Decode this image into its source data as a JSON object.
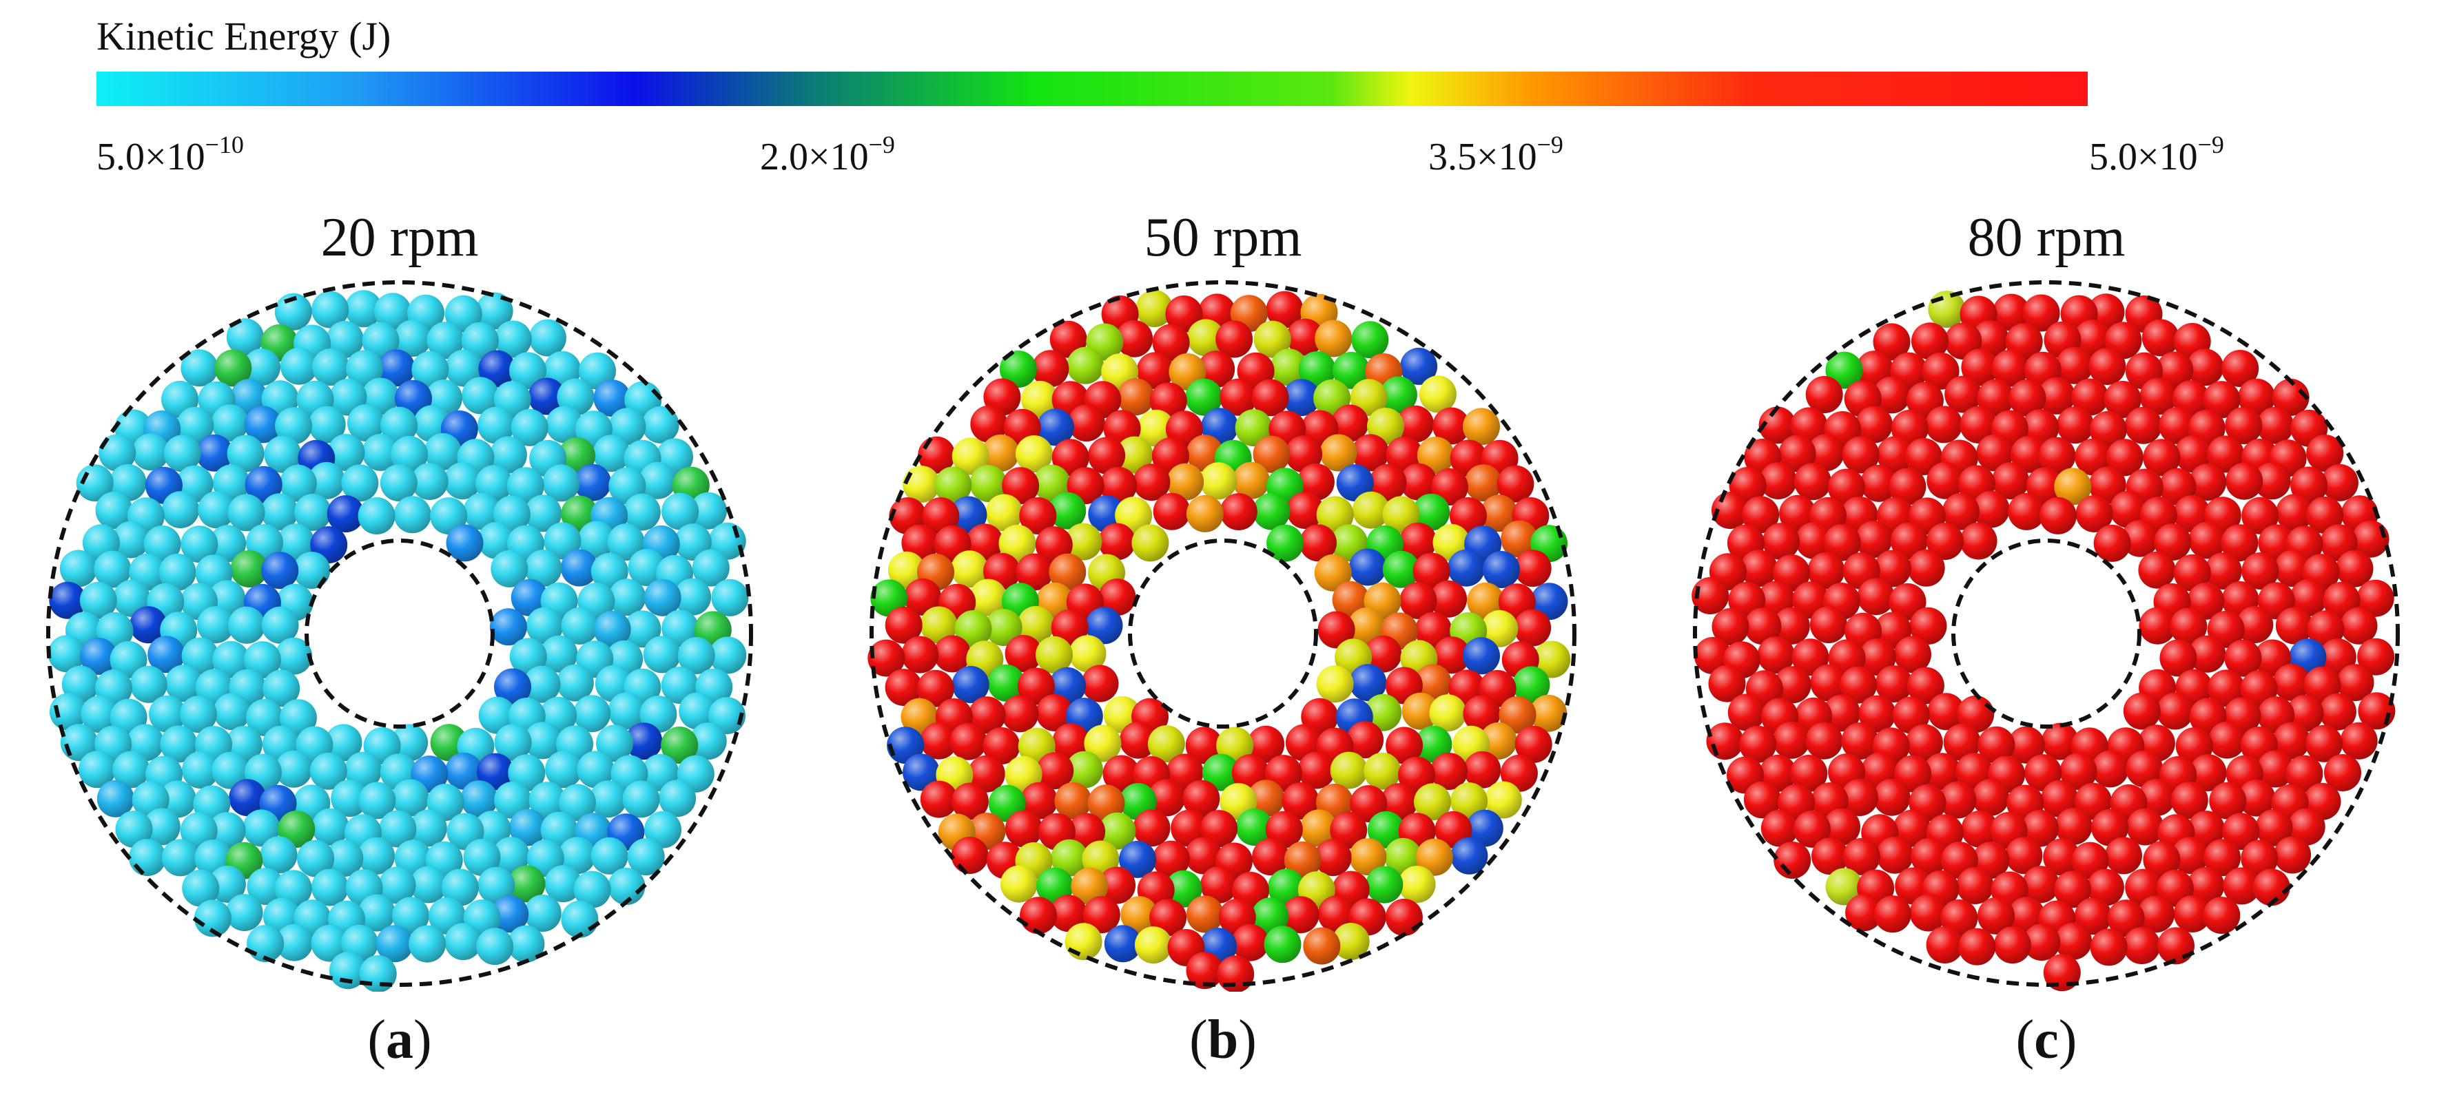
{
  "colorbar": {
    "title": "Kinetic Energy (J)",
    "tick_labels": [
      {
        "mantissa": "5.0×10",
        "exponent": "−10"
      },
      {
        "mantissa": "2.0×10",
        "exponent": "−9"
      },
      {
        "mantissa": "3.5×10",
        "exponent": "−9"
      },
      {
        "mantissa": "5.0×10",
        "exponent": "−9"
      }
    ]
  },
  "panels": [
    {
      "id": "a",
      "title": "20 rpm",
      "label": "a",
      "dominant_color": "#33d8f0",
      "accent_colors": [
        "#1b8ff0",
        "#1468e8",
        "#0e44d8",
        "#22b4ee",
        "#2ec845"
      ],
      "accent_ratio": 0.14
    },
    {
      "id": "b",
      "title": "50 rpm",
      "label": "b",
      "dominant_color": "#f01010",
      "accent_colors": [
        "#f06010",
        "#f59a10",
        "#d8e010",
        "#f0f020",
        "#20d818",
        "#9be010",
        "#1850d8"
      ],
      "accent_ratio": 0.55
    },
    {
      "id": "c",
      "title": "80 rpm",
      "label": "c",
      "dominant_color": "#f01010",
      "accent_colors": [
        "#f06010",
        "#c8e020",
        "#20d818",
        "#f5a010",
        "#1850d8"
      ],
      "accent_ratio": 0.02
    }
  ]
}
